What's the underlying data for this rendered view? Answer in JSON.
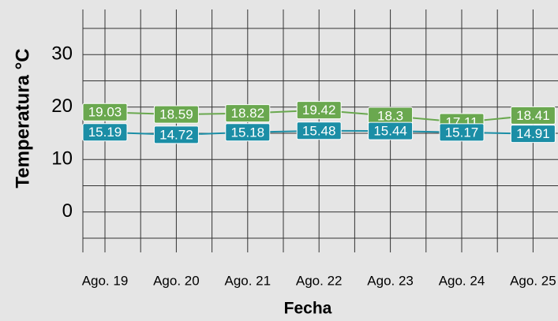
{
  "chart_data": {
    "type": "line",
    "x_label": "Fecha",
    "y_label": "Temperatura °C",
    "categories": [
      "Ago. 19",
      "Ago. 20",
      "Ago. 21",
      "Ago. 22",
      "Ago. 23",
      "Ago. 24",
      "Ago. 25"
    ],
    "series": [
      {
        "color": "#6aa84f",
        "values": [
          19.03,
          18.59,
          18.82,
          19.42,
          18.3,
          17.11,
          18.41
        ]
      },
      {
        "color": "#1b8ea6",
        "values": [
          15.19,
          14.72,
          15.18,
          15.48,
          15.44,
          15.17,
          14.91
        ]
      }
    ],
    "ylim": [
      -5,
      35
    ],
    "yticks": [
      0,
      10,
      20,
      30
    ],
    "minor_yticks": [
      -5,
      5,
      15,
      25,
      35
    ],
    "grid": true
  }
}
